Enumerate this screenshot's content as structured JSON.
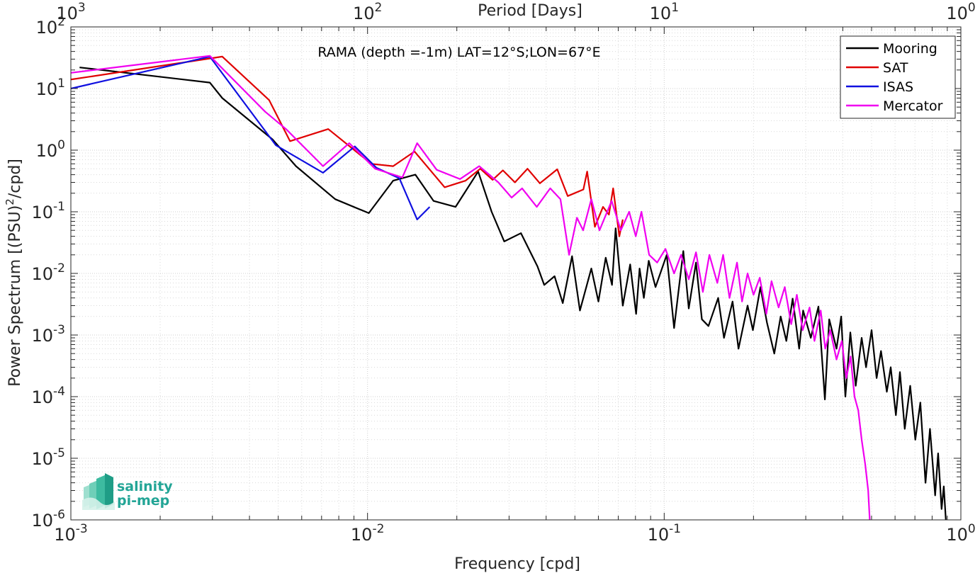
{
  "chart_data": {
    "type": "line",
    "title": "RAMA (depth =-1m) LAT=12°S;LON=67°E",
    "xlabel": "Frequency [cpd]",
    "ylabel_main": "Power Spectrum [(PSU)",
    "ylabel_sup": "2",
    "ylabel_tail": "/cpd]",
    "top_xlabel": "Period [Days]",
    "x_scale": "log",
    "y_scale": "log",
    "xlim": [
      0.001,
      1
    ],
    "ylim": [
      1e-06,
      100
    ],
    "grid": true,
    "legend_position": "top-right",
    "x_ticks": [
      {
        "value": 0.001,
        "base": "10",
        "exp": "-3"
      },
      {
        "value": 0.01,
        "base": "10",
        "exp": "-2"
      },
      {
        "value": 0.1,
        "base": "10",
        "exp": "-1"
      },
      {
        "value": 1,
        "base": "10",
        "exp": "0"
      }
    ],
    "y_ticks": [
      {
        "value": 100,
        "base": "10",
        "exp": "2"
      },
      {
        "value": 10,
        "base": "10",
        "exp": "1"
      },
      {
        "value": 1,
        "base": "10",
        "exp": "0"
      },
      {
        "value": 0.1,
        "base": "10",
        "exp": "-1"
      },
      {
        "value": 0.01,
        "base": "10",
        "exp": "-2"
      },
      {
        "value": 0.001,
        "base": "10",
        "exp": "-3"
      },
      {
        "value": 0.0001,
        "base": "10",
        "exp": "-4"
      },
      {
        "value": 1e-05,
        "base": "10",
        "exp": "-5"
      },
      {
        "value": 1e-06,
        "base": "10",
        "exp": "-6"
      }
    ],
    "top_ticks": [
      {
        "freq": 0.001,
        "base": "10",
        "exp": "3"
      },
      {
        "freq": 0.01,
        "base": "10",
        "exp": "2"
      },
      {
        "freq": 0.1,
        "base": "10",
        "exp": "1"
      },
      {
        "freq": 1,
        "base": "10",
        "exp": "0"
      }
    ],
    "series": [
      {
        "name": "Mooring",
        "color": "#000000",
        "points": [
          [
            0.00107,
            22
          ],
          [
            0.00294,
            12.5
          ],
          [
            0.00324,
            7
          ],
          [
            0.00478,
            1.5
          ],
          [
            0.00574,
            0.55
          ],
          [
            0.00778,
            0.16
          ],
          [
            0.0101,
            0.095
          ],
          [
            0.0122,
            0.32
          ],
          [
            0.0145,
            0.4
          ],
          [
            0.0167,
            0.15
          ],
          [
            0.0198,
            0.12
          ],
          [
            0.0236,
            0.45
          ],
          [
            0.0262,
            0.1
          ],
          [
            0.0289,
            0.033
          ],
          [
            0.0329,
            0.045
          ],
          [
            0.0374,
            0.013
          ],
          [
            0.0394,
            0.0065
          ],
          [
            0.0427,
            0.009
          ],
          [
            0.0455,
            0.0033
          ],
          [
            0.0489,
            0.019
          ],
          [
            0.052,
            0.0025
          ],
          [
            0.0568,
            0.012
          ],
          [
            0.06,
            0.0035
          ],
          [
            0.0635,
            0.018
          ],
          [
            0.0667,
            0.0065
          ],
          [
            0.0686,
            0.054
          ],
          [
            0.0725,
            0.003
          ],
          [
            0.0768,
            0.014
          ],
          [
            0.0804,
            0.0022
          ],
          [
            0.0826,
            0.012
          ],
          [
            0.0854,
            0.004
          ],
          [
            0.0887,
            0.016
          ],
          [
            0.0935,
            0.006
          ],
          [
            0.102,
            0.02
          ],
          [
            0.108,
            0.0013
          ],
          [
            0.116,
            0.023
          ],
          [
            0.121,
            0.0027
          ],
          [
            0.128,
            0.015
          ],
          [
            0.134,
            0.0018
          ],
          [
            0.141,
            0.0014
          ],
          [
            0.152,
            0.004
          ],
          [
            0.159,
            0.0009
          ],
          [
            0.17,
            0.0035
          ],
          [
            0.178,
            0.0006
          ],
          [
            0.191,
            0.003
          ],
          [
            0.199,
            0.0012
          ],
          [
            0.211,
            0.006
          ],
          [
            0.222,
            0.0016
          ],
          [
            0.235,
            0.0005
          ],
          [
            0.247,
            0.002
          ],
          [
            0.258,
            0.0008
          ],
          [
            0.271,
            0.0039
          ],
          [
            0.285,
            0.0006
          ],
          [
            0.294,
            0.0025
          ],
          [
            0.312,
            0.0009
          ],
          [
            0.331,
            0.0029
          ],
          [
            0.348,
            9e-05
          ],
          [
            0.36,
            0.0018
          ],
          [
            0.381,
            0.0006
          ],
          [
            0.395,
            0.002
          ],
          [
            0.408,
            0.0001
          ],
          [
            0.424,
            0.0011
          ],
          [
            0.442,
            0.00015
          ],
          [
            0.463,
            0.0009
          ],
          [
            0.479,
            0.0003
          ],
          [
            0.5,
            0.0012
          ],
          [
            0.52,
            0.0002
          ],
          [
            0.538,
            0.00055
          ],
          [
            0.563,
            0.00012
          ],
          [
            0.58,
            0.0003
          ],
          [
            0.604,
            5e-05
          ],
          [
            0.623,
            0.00025
          ],
          [
            0.647,
            3e-05
          ],
          [
            0.675,
            0.00015
          ],
          [
            0.702,
            2e-05
          ],
          [
            0.73,
            8e-05
          ],
          [
            0.76,
            4e-06
          ],
          [
            0.787,
            3e-05
          ],
          [
            0.819,
            2.5e-06
          ],
          [
            0.838,
            1.2e-05
          ],
          [
            0.861,
            1.5e-06
          ],
          [
            0.876,
            3.5e-06
          ],
          [
            0.89,
            1e-06
          ]
        ]
      },
      {
        "name": "SAT",
        "color": "#e00000",
        "points": [
          [
            0.001,
            14
          ],
          [
            0.00324,
            33
          ],
          [
            0.00466,
            6.5
          ],
          [
            0.00548,
            1.4
          ],
          [
            0.00737,
            2.2
          ],
          [
            0.0103,
            0.6
          ],
          [
            0.0122,
            0.55
          ],
          [
            0.0144,
            0.95
          ],
          [
            0.0182,
            0.25
          ],
          [
            0.0214,
            0.32
          ],
          [
            0.024,
            0.5
          ],
          [
            0.0264,
            0.33
          ],
          [
            0.0286,
            0.47
          ],
          [
            0.0314,
            0.3
          ],
          [
            0.0346,
            0.5
          ],
          [
            0.0381,
            0.29
          ],
          [
            0.0436,
            0.49
          ],
          [
            0.0473,
            0.18
          ],
          [
            0.0534,
            0.23
          ],
          [
            0.055,
            0.45
          ],
          [
            0.0584,
            0.057
          ],
          [
            0.0622,
            0.12
          ],
          [
            0.0651,
            0.09
          ],
          [
            0.0673,
            0.24
          ],
          [
            0.0706,
            0.04
          ],
          [
            0.0725,
            0.075
          ]
        ]
      },
      {
        "name": "ISAS",
        "color": "#1010e0",
        "points": [
          [
            0.001,
            10
          ],
          [
            0.00294,
            33
          ],
          [
            0.00491,
            1.2
          ],
          [
            0.00708,
            0.43
          ],
          [
            0.00906,
            1.15
          ],
          [
            0.01,
            0.72
          ],
          [
            0.0107,
            0.52
          ],
          [
            0.0128,
            0.35
          ],
          [
            0.0147,
            0.075
          ],
          [
            0.0162,
            0.12
          ]
        ]
      },
      {
        "name": "Mercator",
        "color": "#f000f0",
        "points": [
          [
            0.001,
            18
          ],
          [
            0.00294,
            34
          ],
          [
            0.00452,
            4.2
          ],
          [
            0.00531,
            2.2
          ],
          [
            0.00708,
            0.55
          ],
          [
            0.00868,
            1.3
          ],
          [
            0.0106,
            0.5
          ],
          [
            0.0131,
            0.36
          ],
          [
            0.0147,
            1.3
          ],
          [
            0.0171,
            0.48
          ],
          [
            0.0205,
            0.34
          ],
          [
            0.0238,
            0.55
          ],
          [
            0.0276,
            0.3
          ],
          [
            0.0306,
            0.17
          ],
          [
            0.0332,
            0.24
          ],
          [
            0.0372,
            0.12
          ],
          [
            0.0413,
            0.24
          ],
          [
            0.0447,
            0.16
          ],
          [
            0.0478,
            0.02
          ],
          [
            0.0508,
            0.08
          ],
          [
            0.0533,
            0.05
          ],
          [
            0.0568,
            0.16
          ],
          [
            0.0605,
            0.05
          ],
          [
            0.0665,
            0.15
          ],
          [
            0.0714,
            0.05
          ],
          [
            0.0762,
            0.1
          ],
          [
            0.0802,
            0.04
          ],
          [
            0.0838,
            0.1
          ],
          [
            0.089,
            0.02
          ],
          [
            0.0947,
            0.015
          ],
          [
            0.101,
            0.025
          ],
          [
            0.108,
            0.01
          ],
          [
            0.114,
            0.02
          ],
          [
            0.121,
            0.008
          ],
          [
            0.128,
            0.022
          ],
          [
            0.135,
            0.005
          ],
          [
            0.142,
            0.02
          ],
          [
            0.151,
            0.007
          ],
          [
            0.158,
            0.02
          ],
          [
            0.166,
            0.004
          ],
          [
            0.176,
            0.015
          ],
          [
            0.183,
            0.0035
          ],
          [
            0.191,
            0.01
          ],
          [
            0.2,
            0.0045
          ],
          [
            0.21,
            0.0085
          ],
          [
            0.221,
            0.0022
          ],
          [
            0.23,
            0.0075
          ],
          [
            0.243,
            0.0028
          ],
          [
            0.255,
            0.006
          ],
          [
            0.268,
            0.0015
          ],
          [
            0.28,
            0.0045
          ],
          [
            0.293,
            0.0012
          ],
          [
            0.309,
            0.0028
          ],
          [
            0.321,
            0.0008
          ],
          [
            0.337,
            0.0025
          ],
          [
            0.349,
            0.0006
          ],
          [
            0.363,
            0.0012
          ],
          [
            0.381,
            0.0004
          ],
          [
            0.397,
            0.0008
          ],
          [
            0.411,
            0.0002
          ],
          [
            0.425,
            0.00045
          ],
          [
            0.438,
            0.0001
          ],
          [
            0.451,
            6e-05
          ],
          [
            0.463,
            2e-05
          ],
          [
            0.476,
            8e-06
          ],
          [
            0.487,
            3e-06
          ],
          [
            0.493,
            1e-06
          ]
        ]
      }
    ]
  },
  "logo": {
    "line1": "salinity",
    "line2": "pi-mep"
  }
}
